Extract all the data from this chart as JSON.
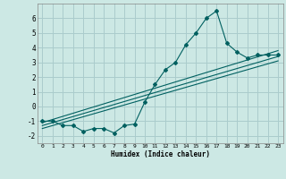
{
  "xlabel": "Humidex (Indice chaleur)",
  "background_color": "#cce8e4",
  "grid_color": "#aacccc",
  "line_color": "#006060",
  "xlim": [
    -0.5,
    23.5
  ],
  "ylim": [
    -2.5,
    7.0
  ],
  "x_data": [
    0,
    1,
    2,
    3,
    4,
    5,
    6,
    7,
    8,
    9,
    10,
    11,
    12,
    13,
    14,
    15,
    16,
    17,
    18,
    19,
    20,
    21,
    22,
    23
  ],
  "y_data": [
    -1.0,
    -1.0,
    -1.3,
    -1.3,
    -1.7,
    -1.5,
    -1.5,
    -1.8,
    -1.3,
    -1.2,
    0.3,
    1.5,
    2.5,
    3.0,
    4.2,
    5.0,
    6.0,
    6.5,
    4.3,
    3.7,
    3.3,
    3.5,
    3.5,
    3.5
  ],
  "line1_x": [
    0,
    23
  ],
  "line1_y": [
    -1.1,
    3.8
  ],
  "line2_x": [
    0,
    23
  ],
  "line2_y": [
    -1.3,
    3.4
  ],
  "line3_x": [
    0,
    23
  ],
  "line3_y": [
    -1.5,
    3.1
  ],
  "yticks": [
    -2,
    -1,
    0,
    1,
    2,
    3,
    4,
    5,
    6
  ],
  "xticks": [
    0,
    1,
    2,
    3,
    4,
    5,
    6,
    7,
    8,
    9,
    10,
    11,
    12,
    13,
    14,
    15,
    16,
    17,
    18,
    19,
    20,
    21,
    22,
    23
  ]
}
